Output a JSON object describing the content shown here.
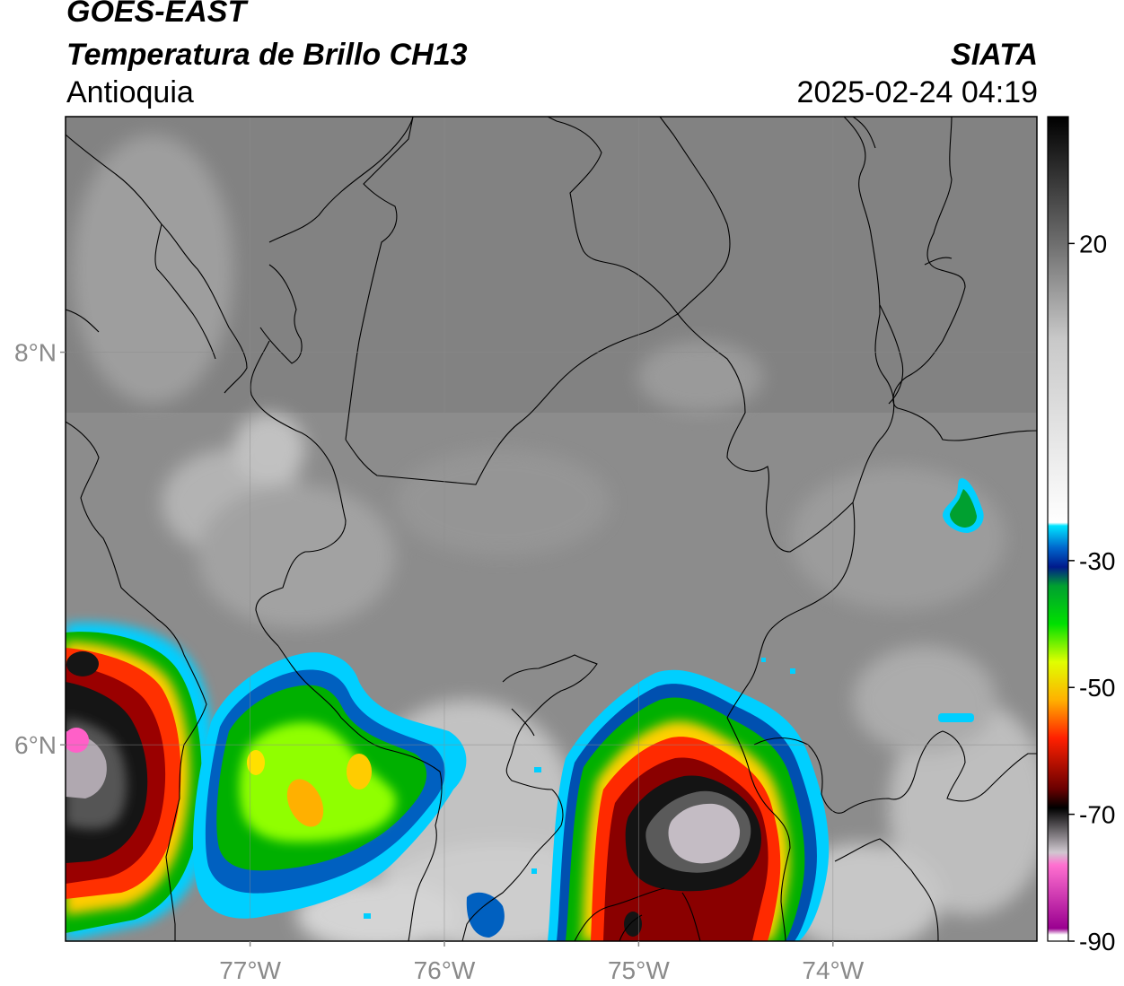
{
  "header": {
    "satellite": "GOES-EAST",
    "product": "Temperatura de Brillo CH13",
    "region": "Antioquia",
    "organization": "SIATA",
    "timestamp": "2025-02-24 04:19"
  },
  "map": {
    "lon_range": [
      -77.95,
      -72.95
    ],
    "lat_range": [
      5.0,
      9.2
    ],
    "lat_ticks": [
      {
        "value": 8,
        "label": "8°N"
      },
      {
        "value": 6,
        "label": "6°N"
      }
    ],
    "lon_ticks": [
      {
        "value": -77,
        "label": "77°W"
      },
      {
        "value": -76,
        "label": "76°W"
      },
      {
        "value": -75,
        "label": "75°W"
      },
      {
        "value": -74,
        "label": "74°W"
      }
    ],
    "gridlines": true
  },
  "colorbar": {
    "range": [
      -90,
      40
    ],
    "ticks": [
      {
        "value": 20,
        "label": "20"
      },
      {
        "value": -30,
        "label": "-30"
      },
      {
        "value": -50,
        "label": "-50"
      },
      {
        "value": -70,
        "label": "-70"
      },
      {
        "value": -90,
        "label": "-90"
      }
    ],
    "stops": [
      {
        "value": 40,
        "color": "#000000"
      },
      {
        "value": 20,
        "color": "#6e6e6e"
      },
      {
        "value": 5,
        "color": "#c8c8c8"
      },
      {
        "value": -24,
        "color": "#ffffff"
      },
      {
        "value": -24.5,
        "color": "#00e5ff"
      },
      {
        "value": -28,
        "color": "#0066cc"
      },
      {
        "value": -31,
        "color": "#001a8c"
      },
      {
        "value": -34,
        "color": "#00a030"
      },
      {
        "value": -40,
        "color": "#00e000"
      },
      {
        "value": -46,
        "color": "#e0ff00"
      },
      {
        "value": -52,
        "color": "#ffb000"
      },
      {
        "value": -58,
        "color": "#ff2000"
      },
      {
        "value": -66,
        "color": "#6a0000"
      },
      {
        "value": -69,
        "color": "#000000"
      },
      {
        "value": -76,
        "color": "#d0c8d0"
      },
      {
        "value": -78,
        "color": "#ff70d0"
      },
      {
        "value": -88,
        "color": "#9a0090"
      },
      {
        "value": -89,
        "color": "#ffffff"
      }
    ]
  }
}
